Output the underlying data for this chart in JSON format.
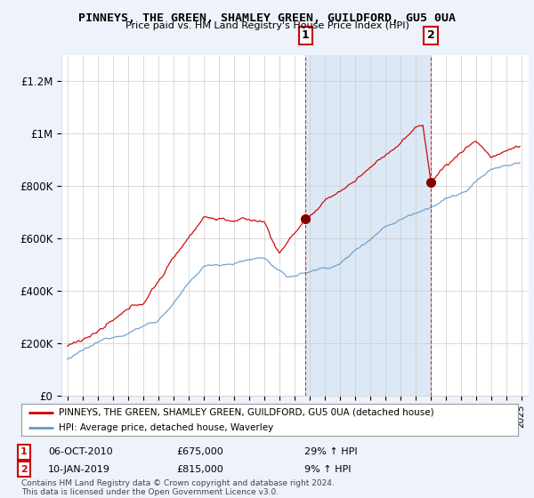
{
  "title": "PINNEYS, THE GREEN, SHAMLEY GREEN, GUILDFORD, GU5 0UA",
  "subtitle": "Price paid vs. HM Land Registry's House Price Index (HPI)",
  "legend_line1": "PINNEYS, THE GREEN, SHAMLEY GREEN, GUILDFORD, GU5 0UA (detached house)",
  "legend_line2": "HPI: Average price, detached house, Waverley",
  "annotation1": {
    "label": "1",
    "date_num": 2010.75,
    "price": 675000,
    "text1": "06-OCT-2010",
    "text2": "£675,000",
    "text3": "29% ↑ HPI"
  },
  "annotation2": {
    "label": "2",
    "date_num": 2019.03,
    "price": 815000,
    "text1": "10-JAN-2019",
    "text2": "£815,000",
    "text3": "9% ↑ HPI"
  },
  "red_color": "#cc0000",
  "blue_color": "#6699cc",
  "background_color": "#eef2fa",
  "plot_bg_color": "#ffffff",
  "shade_color": "#dce8f5",
  "footer": "Contains HM Land Registry data © Crown copyright and database right 2024.\nThis data is licensed under the Open Government Licence v3.0.",
  "ylim": [
    0,
    1300000
  ],
  "yticks": [
    0,
    200000,
    400000,
    600000,
    800000,
    1000000,
    1200000
  ],
  "ytick_labels": [
    "£0",
    "£200K",
    "£400K",
    "£600K",
    "£800K",
    "£1M",
    "£1.2M"
  ],
  "xmin": 1994.6,
  "xmax": 2025.5
}
